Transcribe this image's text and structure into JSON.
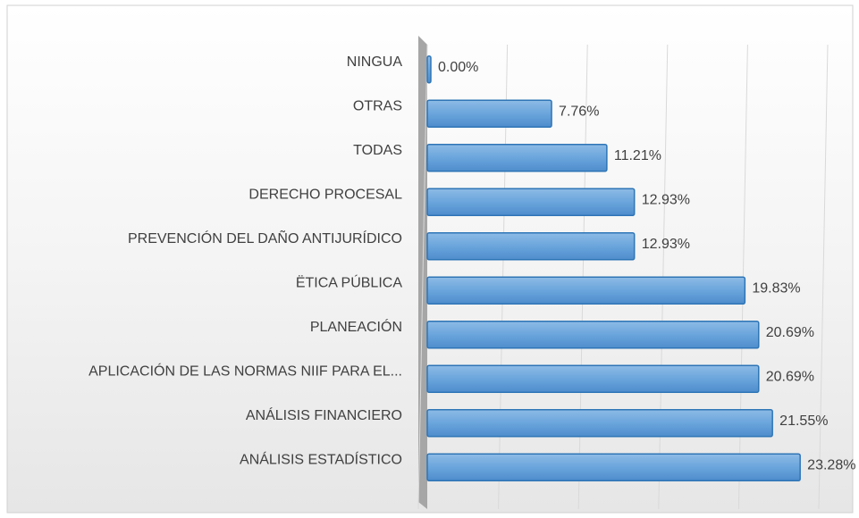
{
  "chart_data": {
    "type": "bar",
    "orientation": "horizontal",
    "categories": [
      "NINGUA",
      "OTRAS",
      "TODAS",
      "DERECHO PROCESAL",
      "PREVENCIÓN DEL DAÑO ANTIJURÍDICO",
      "ËTICA PÚBLICA",
      "PLANEACIÓN",
      "APLICACIÓN DE LAS NORMAS NIIF PARA EL...",
      "ANÁLISIS FINANCIERO",
      "ANÁLISIS ESTADÍSTICO"
    ],
    "values": [
      0,
      7.76,
      11.21,
      12.93,
      12.93,
      19.83,
      20.69,
      20.69,
      21.55,
      23.28
    ],
    "value_labels": [
      "0.00%",
      "7.76%",
      "11.21%",
      "12.93%",
      "12.93%",
      "19.83%",
      "20.69%",
      "20.69%",
      "21.55%",
      "23.28%"
    ],
    "color": "#5b9bd5",
    "xlim": [
      0,
      25
    ],
    "xticks": [
      0,
      5,
      10,
      15,
      20,
      25
    ],
    "grid": true
  }
}
